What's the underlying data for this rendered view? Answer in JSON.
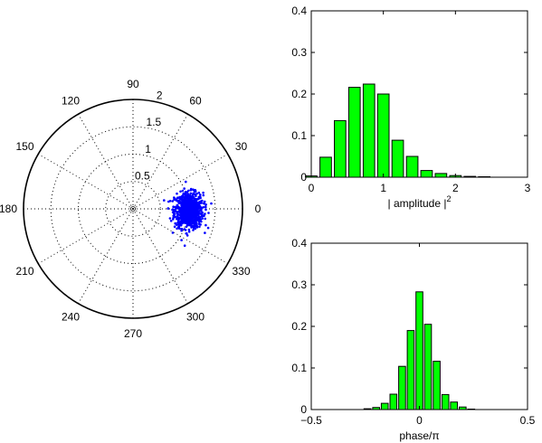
{
  "chart_data": [
    {
      "type": "scatter",
      "coordinate_system": "polar",
      "rmax": 2,
      "radial_ticks": [
        "0.5",
        "1",
        "1.5",
        "2"
      ],
      "angle_ticks": [
        "0",
        "30",
        "60",
        "90",
        "120",
        "150",
        "180",
        "210",
        "240",
        "270",
        "300",
        "330"
      ],
      "point_color": "#0000ff",
      "point_cloud": {
        "center": [
          1.02,
          -0.03
        ],
        "spread": [
          0.13,
          0.16
        ],
        "count": 900,
        "description_values_are_data_units": true
      }
    },
    {
      "type": "bar",
      "xlabel": "| amplitude |",
      "xlabel_sup": "2",
      "xlim": [
        0,
        3
      ],
      "ylim": [
        0,
        0.4
      ],
      "xticks": [
        "0",
        "1",
        "2",
        "3"
      ],
      "yticks": [
        "0",
        "0.1",
        "0.2",
        "0.3",
        "0.4"
      ],
      "bar_color": "#00ff00",
      "bin_width": 0.2,
      "x": [
        0.0,
        0.2,
        0.4,
        0.6,
        0.8,
        1.0,
        1.2,
        1.4,
        1.6,
        1.8,
        2.0,
        2.2,
        2.4,
        2.6
      ],
      "values": [
        0.003,
        0.048,
        0.136,
        0.216,
        0.224,
        0.2,
        0.089,
        0.05,
        0.016,
        0.009,
        0.004,
        0.002,
        0.001,
        0.0
      ]
    },
    {
      "type": "bar",
      "xlabel": "phase/π",
      "xlim": [
        -0.5,
        0.5
      ],
      "ylim": [
        0,
        0.4
      ],
      "xticks": [
        "−0.5",
        "0",
        "0.5"
      ],
      "yticks": [
        "0",
        "0.1",
        "0.2",
        "0.3",
        "0.4"
      ],
      "bar_color": "#00ff00",
      "bin_width": 0.04,
      "x": [
        -0.28,
        -0.24,
        -0.2,
        -0.16,
        -0.12,
        -0.08,
        -0.04,
        0.0,
        0.04,
        0.08,
        0.12,
        0.16,
        0.2,
        0.24
      ],
      "values": [
        0.0,
        0.002,
        0.005,
        0.015,
        0.037,
        0.104,
        0.19,
        0.283,
        0.205,
        0.116,
        0.036,
        0.018,
        0.006,
        0.001
      ]
    }
  ]
}
